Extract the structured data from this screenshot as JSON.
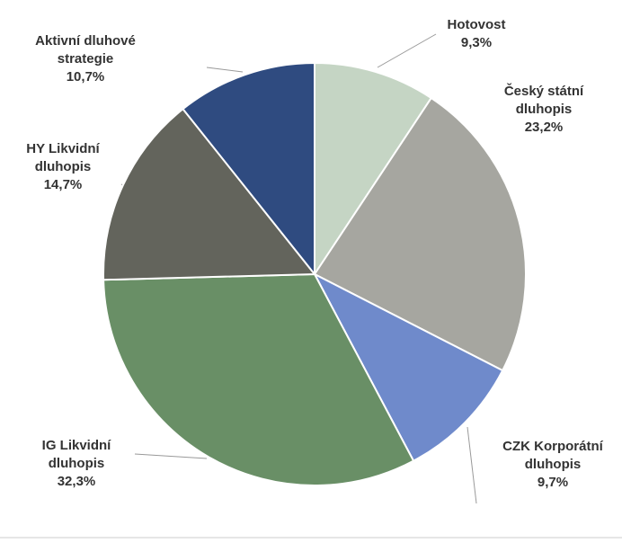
{
  "chart_data": {
    "type": "pie",
    "categories": [
      "Hotovost",
      "Český státní dluhopis",
      "CZK Korporátní dluhopis",
      "IG Likvidní dluhopis",
      "HY Likvidní dluhopis",
      "Aktivní dluhové strategie"
    ],
    "values": [
      9.3,
      23.2,
      9.7,
      32.3,
      14.7,
      10.7
    ],
    "value_labels": [
      "9,3%",
      "23,2%",
      "9,7%",
      "32,3%",
      "14,7%",
      "10,7%"
    ],
    "colors": [
      "#c5d5c4",
      "#a6a6a0",
      "#6f8acb",
      "#698f66",
      "#63645c",
      "#2f4b80"
    ]
  }
}
